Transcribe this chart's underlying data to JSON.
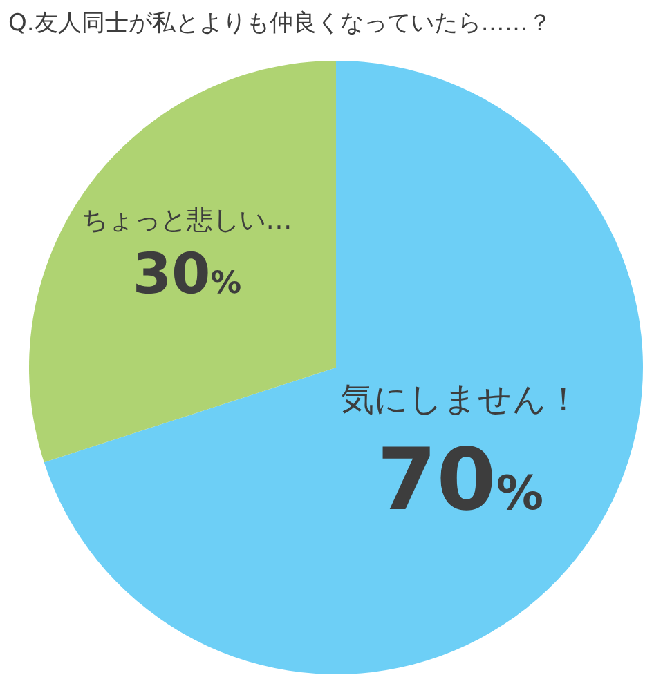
{
  "chart_data": {
    "type": "pie",
    "title": "Q.友人同士が私とよりも仲良くなっていたら……？",
    "categories": [
      "気にしません！",
      "ちょっと悲しい…"
    ],
    "values": [
      70,
      30
    ],
    "colors": [
      "#6dcff6",
      "#afd372"
    ],
    "value_labels": [
      "70%",
      "30%"
    ]
  }
}
